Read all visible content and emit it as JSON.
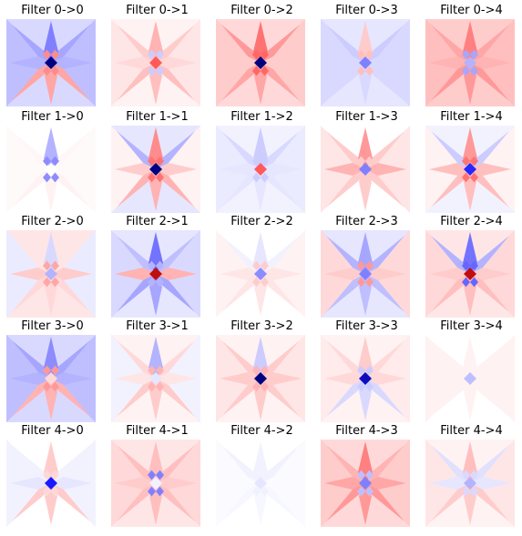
{
  "chart_data": {
    "type": "heatmap",
    "colormap": "bwr",
    "value_range": [
      -1,
      1
    ],
    "grid_rows": 5,
    "grid_cols": 5,
    "panels": [
      {
        "title": "Filter 0->0",
        "values": {
          "center": -1.0,
          "inner": 0.45,
          "petal_v": -0.5,
          "petal_h": -0.3,
          "petal_dx": -0.35,
          "lower_spikes": 0.35,
          "corner": -0.3,
          "edge_v": -0.15,
          "edge_h": -0.25
        }
      },
      {
        "title": "Filter 0->1",
        "values": {
          "center": 0.65,
          "inner": -0.2,
          "petal_v": 0.3,
          "petal_h": 0.15,
          "petal_dx": 0.2,
          "lower_spikes": 0.25,
          "corner": 0.1,
          "edge_v": 0.05,
          "edge_h": 0.1
        }
      },
      {
        "title": "Filter 0->2",
        "values": {
          "center": -1.0,
          "inner": 0.6,
          "petal_v": 0.55,
          "petal_h": 0.2,
          "petal_dx": 0.4,
          "lower_spikes": 0.35,
          "corner": 0.3,
          "edge_v": 0.15,
          "edge_h": 0.2
        }
      },
      {
        "title": "Filter 0->3",
        "values": {
          "center": -0.5,
          "inner": 0.25,
          "petal_v": 0.2,
          "petal_h": -0.15,
          "petal_dx": -0.2,
          "lower_spikes": -0.15,
          "corner": -0.2,
          "edge_v": -0.1,
          "edge_h": -0.15
        }
      },
      {
        "title": "Filter 0->4",
        "values": {
          "center": -0.3,
          "inner": -0.35,
          "petal_v": 0.5,
          "petal_h": 0.3,
          "petal_dx": 0.35,
          "lower_spikes": 0.4,
          "corner": 0.3,
          "edge_v": 0.2,
          "edge_h": 0.25
        }
      },
      {
        "title": "Filter 1->0",
        "values": {
          "center": 0.0,
          "inner": -0.45,
          "petal_v": -0.3,
          "petal_h": 0.02,
          "petal_dx": 0.03,
          "lower_spikes": 0.05,
          "corner": 0.02,
          "edge_v": 0.0,
          "edge_h": 0.02
        }
      },
      {
        "title": "Filter 1->1",
        "values": {
          "center": -1.0,
          "inner": 0.55,
          "petal_v": 0.45,
          "petal_h": 0.2,
          "petal_dx": -0.3,
          "lower_spikes": 0.3,
          "corner": -0.2,
          "edge_v": -0.1,
          "edge_h": 0.05
        }
      },
      {
        "title": "Filter 1->2",
        "values": {
          "center": 0.65,
          "inner": -0.2,
          "petal_v": -0.2,
          "petal_h": -0.1,
          "petal_dx": -0.15,
          "lower_spikes": -0.1,
          "corner": -0.12,
          "edge_v": -0.05,
          "edge_h": -0.08
        }
      },
      {
        "title": "Filter 1->3",
        "values": {
          "center": -0.5,
          "inner": 0.2,
          "petal_v": 0.4,
          "petal_h": 0.3,
          "petal_dx": 0.2,
          "lower_spikes": 0.2,
          "corner": 0.1,
          "edge_v": 0.0,
          "edge_h": 0.1
        }
      },
      {
        "title": "Filter 1->4",
        "values": {
          "center": -0.85,
          "inner": 0.55,
          "petal_v": 0.4,
          "petal_h": 0.25,
          "petal_dx": -0.2,
          "lower_spikes": 0.25,
          "corner": -0.15,
          "edge_v": -0.05,
          "edge_h": 0.05
        }
      },
      {
        "title": "Filter 2->0",
        "values": {
          "center": -0.3,
          "inner": 0.35,
          "petal_v": -0.15,
          "petal_h": 0.2,
          "petal_dx": 0.1,
          "lower_spikes": 0.15,
          "corner": -0.1,
          "edge_v": 0.1,
          "edge_h": -0.08
        }
      },
      {
        "title": "Filter 2->1",
        "values": {
          "center": 0.95,
          "inner": -0.3,
          "petal_v": -0.55,
          "petal_h": 0.3,
          "petal_dx": -0.25,
          "lower_spikes": -0.35,
          "corner": -0.25,
          "edge_v": -0.1,
          "edge_h": -0.15
        }
      },
      {
        "title": "Filter 2->2",
        "values": {
          "center": -0.45,
          "inner": 0.2,
          "petal_v": -0.1,
          "petal_h": 0.1,
          "petal_dx": -0.05,
          "lower_spikes": 0.1,
          "corner": -0.05,
          "edge_v": 0.0,
          "edge_h": 0.05
        }
      },
      {
        "title": "Filter 2->3",
        "values": {
          "center": -0.5,
          "inner": 0.4,
          "petal_v": -0.35,
          "petal_h": 0.2,
          "petal_dx": -0.3,
          "lower_spikes": -0.25,
          "corner": -0.2,
          "edge_v": -0.1,
          "edge_h": 0.15
        }
      },
      {
        "title": "Filter 2->4",
        "values": {
          "center": 0.95,
          "inner": -0.6,
          "petal_v": -0.55,
          "petal_h": 0.2,
          "petal_dx": -0.3,
          "lower_spikes": 0.25,
          "corner": 0.15,
          "edge_v": 0.1,
          "edge_h": 0.15
        }
      },
      {
        "title": "Filter 3->0",
        "values": {
          "center": 0.15,
          "inner": 0.4,
          "petal_v": -0.45,
          "petal_h": -0.3,
          "petal_dx": -0.35,
          "lower_spikes": 0.3,
          "corner": -0.3,
          "edge_v": -0.15,
          "edge_h": -0.25
        }
      },
      {
        "title": "Filter 3->1",
        "values": {
          "center": -0.1,
          "inner": 0.3,
          "petal_v": -0.3,
          "petal_h": 0.1,
          "petal_dx": 0.15,
          "lower_spikes": 0.2,
          "corner": -0.15,
          "edge_v": 0.05,
          "edge_h": -0.05
        }
      },
      {
        "title": "Filter 3->2",
        "values": {
          "center": -1.0,
          "inner": 0.3,
          "petal_v": -0.2,
          "petal_h": 0.2,
          "petal_dx": 0.2,
          "lower_spikes": 0.2,
          "corner": -0.1,
          "edge_v": 0.05,
          "edge_h": 0.1
        }
      },
      {
        "title": "Filter 3->3",
        "values": {
          "center": -0.95,
          "inner": -0.2,
          "petal_v": 0.2,
          "petal_h": 0.15,
          "petal_dx": 0.15,
          "lower_spikes": -0.15,
          "corner": 0.1,
          "edge_v": 0.05,
          "edge_h": 0.08
        }
      },
      {
        "title": "Filter 3->4",
        "values": {
          "center": -0.25,
          "inner": 0.05,
          "petal_v": 0.05,
          "petal_h": 0.05,
          "petal_dx": 0.05,
          "lower_spikes": 0.05,
          "corner": 0.05,
          "edge_v": 0.0,
          "edge_h": 0.05
        }
      },
      {
        "title": "Filter 4->0",
        "values": {
          "center": -0.9,
          "inner": 0.15,
          "petal_v": 0.2,
          "petal_h": -0.1,
          "petal_dx": -0.05,
          "lower_spikes": 0.2,
          "corner": -0.08,
          "edge_v": 0.0,
          "edge_h": -0.05
        }
      },
      {
        "title": "Filter 4->1",
        "values": {
          "center": -0.05,
          "inner": -0.5,
          "petal_v": 0.25,
          "petal_h": 0.2,
          "petal_dx": 0.25,
          "lower_spikes": 0.25,
          "corner": 0.15,
          "edge_v": 0.1,
          "edge_h": 0.15
        }
      },
      {
        "title": "Filter 4->2",
        "values": {
          "center": -0.1,
          "inner": -0.05,
          "petal_v": -0.05,
          "petal_h": -0.02,
          "petal_dx": -0.05,
          "lower_spikes": -0.03,
          "corner": -0.02,
          "edge_v": 0.0,
          "edge_h": -0.02
        }
      },
      {
        "title": "Filter 4->3",
        "values": {
          "center": -0.5,
          "inner": -0.25,
          "petal_v": 0.5,
          "petal_h": 0.35,
          "petal_dx": 0.3,
          "lower_spikes": 0.4,
          "corner": 0.25,
          "edge_v": 0.15,
          "edge_h": 0.2
        }
      },
      {
        "title": "Filter 4->4",
        "values": {
          "center": -0.3,
          "inner": -0.15,
          "petal_v": 0.25,
          "petal_h": -0.1,
          "petal_dx": -0.12,
          "lower_spikes": 0.2,
          "corner": 0.15,
          "edge_v": 0.05,
          "edge_h": 0.1
        }
      }
    ]
  }
}
